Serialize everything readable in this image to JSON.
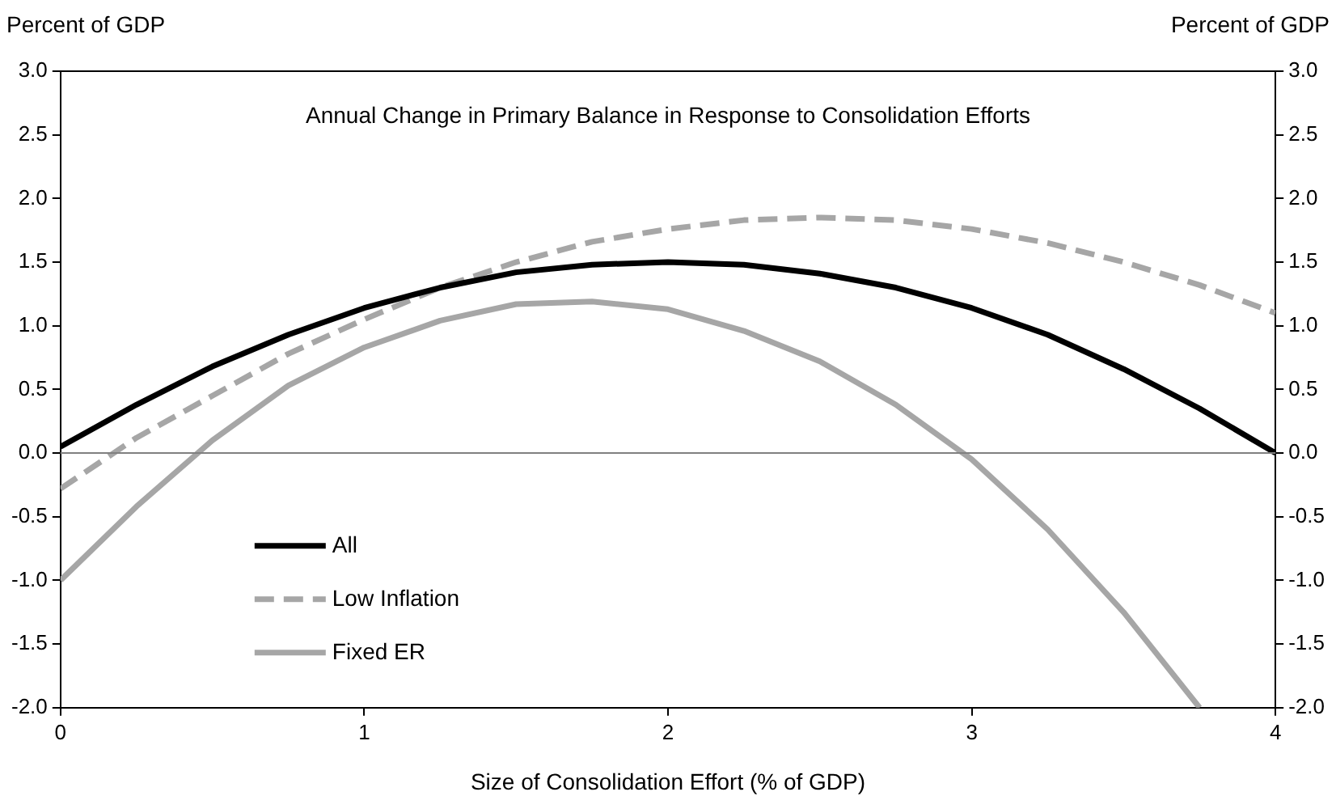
{
  "chart_data": {
    "type": "line",
    "title": "Annual Change in Primary Balance in Response to Consolidation Efforts",
    "xlabel": "Size of Consolidation Effort (% of GDP)",
    "ylabel": "Percent of GDP",
    "y2label": "Percent of GDP",
    "x": [
      0,
      0.25,
      0.5,
      0.75,
      1,
      1.25,
      1.5,
      1.75,
      2,
      2.25,
      2.5,
      2.75,
      3,
      3.25,
      3.5,
      3.75,
      4
    ],
    "series": [
      {
        "name": "All",
        "color": "#000000",
        "line_style": "solid",
        "values": [
          0.05,
          0.38,
          0.68,
          0.93,
          1.14,
          1.3,
          1.42,
          1.48,
          1.5,
          1.48,
          1.41,
          1.3,
          1.14,
          0.93,
          0.66,
          0.35,
          0.0
        ]
      },
      {
        "name": "Low Inflation",
        "color": "#a6a6a6",
        "line_style": "dashed",
        "values": [
          -0.28,
          0.12,
          0.45,
          0.78,
          1.05,
          1.3,
          1.5,
          1.66,
          1.76,
          1.83,
          1.85,
          1.83,
          1.76,
          1.65,
          1.5,
          1.32,
          1.1
        ]
      },
      {
        "name": "Fixed ER",
        "color": "#a6a6a6",
        "line_style": "solid",
        "values": [
          -1.0,
          -0.42,
          0.1,
          0.53,
          0.83,
          1.04,
          1.17,
          1.19,
          1.13,
          0.96,
          0.72,
          0.38,
          -0.05,
          -0.6,
          -1.25,
          -2.0,
          null
        ]
      }
    ],
    "xlim": [
      0,
      4
    ],
    "xticks": [
      0,
      1,
      2,
      3,
      4
    ],
    "ylim": [
      -2,
      3
    ],
    "yticks": [
      {
        "value": -2,
        "label": "-2.0"
      },
      {
        "value": -1.5,
        "label": "-1.5"
      },
      {
        "value": -1,
        "label": "-1.0"
      },
      {
        "value": -0.5,
        "label": "-0.5"
      },
      {
        "value": 0,
        "label": "0.0"
      },
      {
        "value": 0.5,
        "label": "0.5"
      },
      {
        "value": 1,
        "label": "1.0"
      },
      {
        "value": 1.5,
        "label": "1.5"
      },
      {
        "value": 2,
        "label": "2.0"
      },
      {
        "value": 2.5,
        "label": "2.5"
      },
      {
        "value": 3,
        "label": "3.0"
      }
    ],
    "y2lim": [
      -2,
      3
    ],
    "y2ticks": [
      {
        "value": -2,
        "label": "-2.0"
      },
      {
        "value": -1.5,
        "label": "-1.5"
      },
      {
        "value": -1,
        "label": "-1.0"
      },
      {
        "value": -0.5,
        "label": "-0.5"
      },
      {
        "value": 0,
        "label": "0.0"
      },
      {
        "value": 0.5,
        "label": "0.5"
      },
      {
        "value": 1,
        "label": "1.0"
      },
      {
        "value": 1.5,
        "label": "1.5"
      },
      {
        "value": 2,
        "label": "2.0"
      },
      {
        "value": 2.5,
        "label": "2.5"
      },
      {
        "value": 3,
        "label": "3.0"
      }
    ],
    "ref_lines": [
      {
        "axis": "y",
        "value": 0,
        "color": "#808080"
      }
    ],
    "grid": false,
    "legend": "bottom left",
    "marker": "none"
  }
}
